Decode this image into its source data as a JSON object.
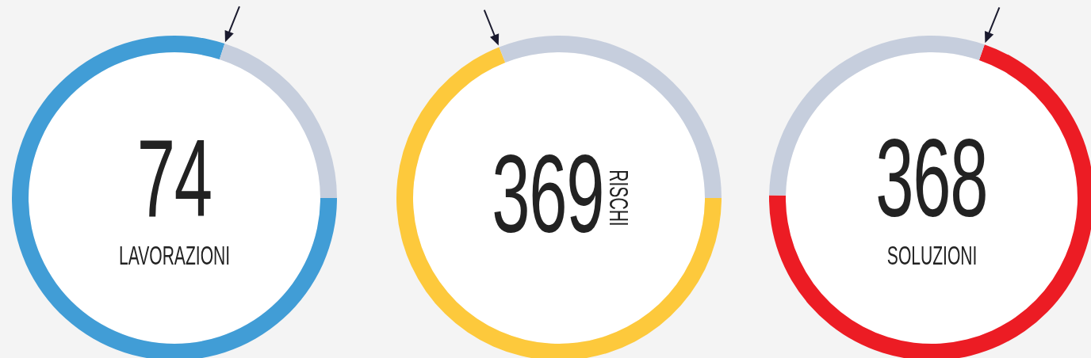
{
  "chart_data": [
    {
      "type": "donut",
      "categories": [
        null,
        null
      ],
      "values": [
        80,
        20
      ],
      "colors": [
        "#419dd6",
        "#c6cedd"
      ],
      "annotations": [
        "74",
        "LAVORAZIONI"
      ]
    },
    {
      "type": "donut",
      "categories": [
        null,
        null
      ],
      "values": [
        69,
        31
      ],
      "colors": [
        "#fdc93c",
        "#c6cedd"
      ],
      "annotations": [
        "369",
        "RISCHI"
      ]
    },
    {
      "type": "donut",
      "categories": [
        null,
        null
      ],
      "values": [
        70,
        30
      ],
      "colors": [
        "#ec1c24",
        "#c6cedd"
      ],
      "annotations": [
        "368",
        "SOLUZIONI"
      ]
    }
  ]
}
